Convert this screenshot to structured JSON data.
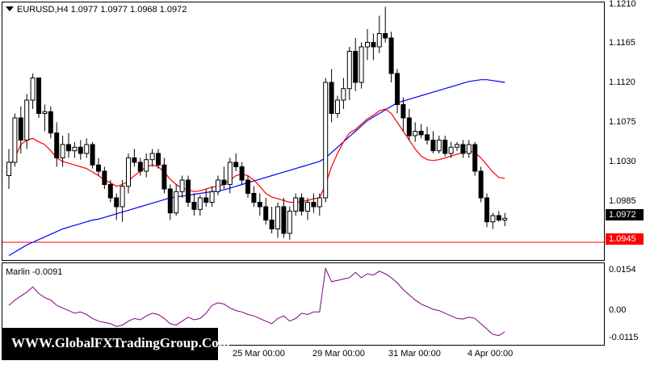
{
  "chart": {
    "header": "EURUSD,H4  1.0977 1.0977 1.0968 1.0972",
    "menu_icon": "triangle-down-icon"
  },
  "price_axis": {
    "labels": [
      "1.1210",
      "1.1165",
      "1.1120",
      "1.1075",
      "1.1030",
      "1.0985"
    ],
    "current_price": "1.0972",
    "level_price": "1.0945",
    "level_color": "#ff0000",
    "current_tag_bg": "#000000",
    "level_tag_bg": "#ff0000"
  },
  "indicator": {
    "header": "Marlin -0.0091",
    "labels": [
      "0.0154",
      "0.00",
      "-0.0115"
    ],
    "line_color": "#800080"
  },
  "time_axis": {
    "labels": [
      "25 Mar 00:00",
      "29 Mar 00:00",
      "31 Mar 00:00",
      "4 Apr 00:00"
    ]
  },
  "watermark": "WWW.GlobalFXTradingGroup.Com",
  "chart_data": {
    "type": "candlestick",
    "symbol": "EURUSD",
    "timeframe": "H4",
    "ylim": [
      1.0925,
      1.1215
    ],
    "ma_fast_color": "#ff0000",
    "ma_slow_color": "#0000ff",
    "candles": [
      [
        1.102,
        1.105,
        1.1005,
        1.1035
      ],
      [
        1.1035,
        1.109,
        1.103,
        1.1085
      ],
      [
        1.1085,
        1.1098,
        1.1045,
        1.106
      ],
      [
        1.106,
        1.1112,
        1.105,
        1.1105
      ],
      [
        1.1105,
        1.1135,
        1.1095,
        1.113
      ],
      [
        1.113,
        1.113,
        1.1085,
        1.109
      ],
      [
        1.109,
        1.11,
        1.107,
        1.1092
      ],
      [
        1.1092,
        1.1098,
        1.1062,
        1.1068
      ],
      [
        1.1068,
        1.108,
        1.103,
        1.104
      ],
      [
        1.104,
        1.1065,
        1.103,
        1.1055
      ],
      [
        1.1055,
        1.1068,
        1.104,
        1.1048
      ],
      [
        1.1048,
        1.1058,
        1.104,
        1.1052
      ],
      [
        1.1052,
        1.106,
        1.1038,
        1.1045
      ],
      [
        1.1045,
        1.1062,
        1.104,
        1.1055
      ],
      [
        1.1055,
        1.1058,
        1.1028,
        1.1032
      ],
      [
        1.1032,
        1.104,
        1.102,
        1.1025
      ],
      [
        1.1025,
        1.103,
        1.1005,
        1.101
      ],
      [
        1.101,
        1.1015,
        1.099,
        1.0995
      ],
      [
        1.0995,
        1.1,
        1.097,
        1.0985
      ],
      [
        1.0985,
        1.1015,
        1.0968,
        1.1008
      ],
      [
        1.1008,
        1.1045,
        1.1,
        1.104
      ],
      [
        1.104,
        1.105,
        1.103,
        1.1035
      ],
      [
        1.1035,
        1.104,
        1.102,
        1.1025
      ],
      [
        1.1025,
        1.1045,
        1.1018,
        1.1038
      ],
      [
        1.1038,
        1.105,
        1.103,
        1.1045
      ],
      [
        1.1045,
        1.105,
        1.1028,
        1.1032
      ],
      [
        1.1032,
        1.104,
        1.1,
        1.1005
      ],
      [
        1.1005,
        1.101,
        1.097,
        1.0978
      ],
      [
        1.0978,
        1.101,
        1.0975,
        1.1002
      ],
      [
        1.1002,
        1.102,
        1.0995,
        1.1015
      ],
      [
        1.1015,
        1.102,
        1.0985,
        1.099
      ],
      [
        1.099,
        1.1,
        1.0975,
        1.0982
      ],
      [
        1.0982,
        1.0998,
        1.0975,
        1.0995
      ],
      [
        1.0995,
        1.1005,
        1.0985,
        1.099
      ],
      [
        1.099,
        1.1008,
        1.0985,
        1.1002
      ],
      [
        1.1002,
        1.102,
        1.0998,
        1.1015
      ],
      [
        1.1015,
        1.103,
        1.1005,
        1.101
      ],
      [
        1.101,
        1.104,
        1.1,
        1.1035
      ],
      [
        1.1035,
        1.1045,
        1.1025,
        1.103
      ],
      [
        1.103,
        1.1035,
        1.101,
        1.1015
      ],
      [
        1.1015,
        1.102,
        1.0995,
        1.1
      ],
      [
        1.1,
        1.1008,
        1.0985,
        1.099
      ],
      [
        1.099,
        1.1,
        1.0975,
        1.0985
      ],
      [
        1.0985,
        1.0995,
        1.0965,
        1.097
      ],
      [
        1.097,
        1.0985,
        1.0955,
        1.096
      ],
      [
        1.096,
        1.099,
        1.095,
        1.0985
      ],
      [
        1.0985,
        1.0995,
        1.095,
        1.0955
      ],
      [
        1.0955,
        1.0985,
        1.0948,
        1.098
      ],
      [
        1.098,
        1.1,
        1.0975,
        1.0995
      ],
      [
        1.0995,
        1.1,
        1.0975,
        1.098
      ],
      [
        1.098,
        1.0995,
        1.097,
        1.099
      ],
      [
        1.099,
        1.1,
        1.0978,
        1.0985
      ],
      [
        1.0985,
        1.1,
        1.0975,
        1.0995
      ],
      [
        1.0995,
        1.113,
        1.099,
        1.1125
      ],
      [
        1.1125,
        1.114,
        1.108,
        1.109
      ],
      [
        1.109,
        1.111,
        1.1085,
        1.1105
      ],
      [
        1.1105,
        1.113,
        1.1095,
        1.1118
      ],
      [
        1.1118,
        1.1165,
        1.1105,
        1.116
      ],
      [
        1.116,
        1.1175,
        1.1115,
        1.1125
      ],
      [
        1.1125,
        1.117,
        1.1118,
        1.1165
      ],
      [
        1.1165,
        1.1185,
        1.115,
        1.117
      ],
      [
        1.117,
        1.118,
        1.115,
        1.1165
      ],
      [
        1.1165,
        1.12,
        1.1158,
        1.118
      ],
      [
        1.118,
        1.121,
        1.117,
        1.1175
      ],
      [
        1.1175,
        1.1182,
        1.1125,
        1.1135
      ],
      [
        1.1135,
        1.114,
        1.109,
        1.11
      ],
      [
        1.11,
        1.1108,
        1.107,
        1.1085
      ],
      [
        1.1085,
        1.1095,
        1.106,
        1.1065
      ],
      [
        1.1065,
        1.108,
        1.1058,
        1.107
      ],
      [
        1.107,
        1.1078,
        1.1062,
        1.1066
      ],
      [
        1.1066,
        1.1075,
        1.1055,
        1.106
      ],
      [
        1.106,
        1.107,
        1.1045,
        1.1048
      ],
      [
        1.1048,
        1.1065,
        1.1045,
        1.106
      ],
      [
        1.106,
        1.1065,
        1.1042,
        1.1045
      ],
      [
        1.1045,
        1.1058,
        1.104,
        1.1052
      ],
      [
        1.1052,
        1.1058,
        1.1048,
        1.1055
      ],
      [
        1.1055,
        1.106,
        1.104,
        1.1045
      ],
      [
        1.1045,
        1.106,
        1.104,
        1.1055
      ],
      [
        1.1055,
        1.1058,
        1.102,
        1.1025
      ],
      [
        1.1025,
        1.103,
        1.099,
        1.0995
      ],
      [
        1.0995,
        1.1,
        1.0962,
        1.0968
      ],
      [
        1.0968,
        1.0978,
        1.096,
        1.0975
      ],
      [
        1.0975,
        1.098,
        1.0968,
        1.097
      ],
      [
        1.097,
        1.0978,
        1.0963,
        1.0972
      ]
    ],
    "ma_fast": [
      1.103,
      1.104,
      1.1055,
      1.106,
      1.1062,
      1.1058,
      1.1055,
      1.1048,
      1.104,
      1.1036,
      1.1034,
      1.1032,
      1.103,
      1.1028,
      1.1024,
      1.102,
      1.1015,
      1.1012,
      1.1008,
      1.101,
      1.1014,
      1.102,
      1.1025,
      1.103,
      1.1032,
      1.103,
      1.1024,
      1.1016,
      1.101,
      1.1006,
      1.1004,
      1.1002,
      1.1003,
      1.1005,
      1.1007,
      1.1008,
      1.101,
      1.1015,
      1.102,
      1.1022,
      1.102,
      1.1015,
      1.1008,
      1.1,
      1.0996,
      1.0994,
      1.0992,
      1.099,
      1.099,
      1.0991,
      1.0992,
      1.0994,
      1.0995,
      1.101,
      1.103,
      1.1045,
      1.1058,
      1.1068,
      1.1072,
      1.1078,
      1.1084,
      1.1088,
      1.1093,
      1.1095,
      1.109,
      1.108,
      1.107,
      1.106,
      1.105,
      1.1042,
      1.1038,
      1.1037,
      1.1038,
      1.104,
      1.1042,
      1.1044,
      1.1046,
      1.1048,
      1.1046,
      1.104,
      1.1032,
      1.1024,
      1.1018,
      1.1017
    ],
    "ma_slow": [
      1.093,
      1.0934,
      1.0938,
      1.0942,
      1.0945,
      1.0948,
      1.0951,
      1.0954,
      1.0957,
      1.096,
      1.0962,
      1.0964,
      1.0966,
      1.0968,
      1.097,
      1.0971,
      1.0973,
      1.0975,
      1.0977,
      1.0979,
      1.0981,
      1.0983,
      1.0985,
      1.0987,
      1.0989,
      1.0991,
      1.0993,
      1.0995,
      1.0996,
      1.0997,
      1.0998,
      1.0999,
      1.1,
      1.1001,
      1.1002,
      1.1003,
      1.1004,
      1.1006,
      1.1008,
      1.101,
      1.1012,
      1.1014,
      1.1016,
      1.1018,
      1.102,
      1.1022,
      1.1024,
      1.1026,
      1.1028,
      1.103,
      1.1032,
      1.1034,
      1.1036,
      1.104,
      1.1046,
      1.1052,
      1.1058,
      1.1064,
      1.107,
      1.1076,
      1.1082,
      1.1086,
      1.109,
      1.1094,
      1.1098,
      1.1102,
      1.1104,
      1.1106,
      1.1108,
      1.111,
      1.1112,
      1.1114,
      1.1116,
      1.1118,
      1.112,
      1.1122,
      1.1124,
      1.1126,
      1.1127,
      1.1128,
      1.1128,
      1.1127,
      1.1126,
      1.1125
    ],
    "level": 1.0945,
    "indicator_ylim": [
      -0.014,
      0.017
    ],
    "indicator": [
      0.001,
      0.003,
      0.0045,
      0.006,
      0.008,
      0.0055,
      0.004,
      0.003,
      0.001,
      0.0,
      -0.001,
      -0.002,
      -0.0015,
      -0.0025,
      -0.004,
      -0.005,
      -0.0055,
      -0.006,
      -0.007,
      -0.0065,
      -0.005,
      -0.004,
      -0.0045,
      -0.003,
      -0.002,
      -0.0025,
      -0.004,
      -0.006,
      -0.0065,
      -0.005,
      -0.0035,
      -0.0045,
      -0.004,
      -0.002,
      0.001,
      0.002,
      0.0015,
      0.0,
      -0.001,
      -0.0015,
      -0.0025,
      -0.003,
      -0.004,
      -0.005,
      -0.006,
      -0.004,
      -0.003,
      -0.005,
      -0.004,
      -0.002,
      -0.0025,
      -0.0015,
      -0.0015,
      0.015,
      0.01,
      0.0105,
      0.011,
      0.0115,
      0.0135,
      0.0115,
      0.013,
      0.0125,
      0.014,
      0.013,
      0.0115,
      0.0095,
      0.007,
      0.005,
      0.003,
      0.0015,
      0.0005,
      -0.0005,
      -0.001,
      -0.002,
      -0.003,
      -0.004,
      -0.0042,
      -0.0035,
      -0.004,
      -0.006,
      -0.008,
      -0.01,
      -0.0105,
      -0.0091
    ]
  }
}
